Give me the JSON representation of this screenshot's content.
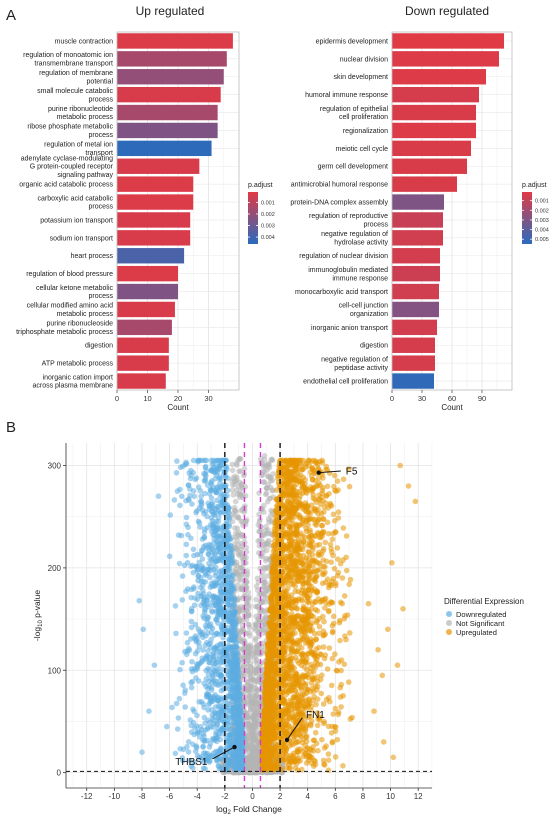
{
  "panels": {
    "a": {
      "letter": "A"
    },
    "b": {
      "letter": "B"
    }
  },
  "chart_data": [
    {
      "type": "bar",
      "orientation": "horizontal",
      "title": "Up regulated",
      "xlabel": "Count",
      "xlim": [
        0,
        40
      ],
      "xticks": [
        0,
        10,
        20,
        30
      ],
      "categories": [
        "muscle contraction",
        "regulation of monoatomic ion transmembrane transport",
        "regulation of membrane potential",
        "small molecule catabolic process",
        "purine ribonucleotide metabolic process",
        "ribose phosphate metabolic process",
        "regulation of metal ion transport",
        "adenylate cyclase-modulating G protein-coupled receptor signaling pathway",
        "organic acid catabolic process",
        "carboxylic acid catabolic process",
        "potassium ion transport",
        "sodium ion transport",
        "heart process",
        "regulation of blood pressure",
        "cellular ketone metabolic process",
        "cellular modified amino acid metabolic process",
        "purine ribonucleoside triphosphate metabolic process",
        "digestion",
        "ATP metabolic process",
        "inorganic cation import across plasma membrane"
      ],
      "label_lines": [
        [
          "muscle contraction"
        ],
        [
          "regulation of monoatomic ion",
          "transmembrane transport"
        ],
        [
          "regulation of membrane",
          "potential"
        ],
        [
          "small molecule catabolic",
          "process"
        ],
        [
          "purine ribonucleotide",
          "metabolic process"
        ],
        [
          "ribose phosphate metabolic",
          "process"
        ],
        [
          "regulation of metal ion",
          "transport"
        ],
        [
          "adenylate cyclase-modulating",
          "G protein-coupled receptor",
          "signaling pathway"
        ],
        [
          "organic acid catabolic process"
        ],
        [
          "carboxylic acid catabolic",
          "process"
        ],
        [
          "potassium ion transport"
        ],
        [
          "sodium ion transport"
        ],
        [
          "heart process"
        ],
        [
          "regulation of blood pressure"
        ],
        [
          "cellular ketone metabolic",
          "process"
        ],
        [
          "cellular modified amino acid",
          "metabolic process"
        ],
        [
          "purine ribonucleoside",
          "triphosphate metabolic process"
        ],
        [
          "digestion"
        ],
        [
          "ATP metabolic process"
        ],
        [
          "inorganic cation import",
          "across plasma membrane"
        ]
      ],
      "values": [
        38,
        36,
        35,
        34,
        33,
        33,
        31,
        27,
        25,
        25,
        24,
        24,
        22,
        20,
        20,
        19,
        18,
        17,
        17,
        16
      ],
      "p_adjust": [
        0.0002,
        0.0015,
        0.002,
        0.0003,
        0.0015,
        0.0025,
        0.0045,
        0.0003,
        0.0002,
        0.0002,
        0.0003,
        0.0003,
        0.0038,
        0.0002,
        0.0025,
        0.0003,
        0.0015,
        0.0003,
        0.0003,
        0.0003
      ],
      "legend": {
        "title": "p.adjust",
        "ticks": [
          0.001,
          0.002,
          0.003,
          0.004
        ],
        "tick_labels": [
          "0.001",
          "0.002",
          "0.003",
          "0.004"
        ],
        "range": [
          0.0001,
          0.0046
        ],
        "low_color": "#e03a45",
        "high_color": "#2a6bbd"
      },
      "grid": true
    },
    {
      "type": "bar",
      "orientation": "horizontal",
      "title": "Down regulated",
      "xlabel": "Count",
      "xlim": [
        0,
        120
      ],
      "xticks": [
        0,
        30,
        60,
        90
      ],
      "categories": [
        "epidermis development",
        "nuclear division",
        "skin development",
        "humoral immune response",
        "regulation of epithelial cell proliferation",
        "regionalization",
        "meiotic cell cycle",
        "germ cell development",
        "antimicrobial humoral response",
        "protein-DNA complex assembly",
        "regulation of reproductive process",
        "negative regulation of hydrolase activity",
        "regulation of nuclear division",
        "immunoglobulin mediated immune response",
        "monocarboxylic acid transport",
        "cell-cell junction organization",
        "inorganic anion transport",
        "digestion",
        "negative regulation of peptidase activity",
        "endothelial cell proliferation"
      ],
      "label_lines": [
        [
          "epidermis development"
        ],
        [
          "nuclear division"
        ],
        [
          "skin development"
        ],
        [
          "humoral immune response"
        ],
        [
          "regulation of epithelial",
          "cell proliferation"
        ],
        [
          "regionalization"
        ],
        [
          "meiotic cell cycle"
        ],
        [
          "germ cell development"
        ],
        [
          "antimicrobial humoral response"
        ],
        [
          "protein-DNA complex assembly"
        ],
        [
          "regulation of reproductive",
          "process"
        ],
        [
          "negative regulation of",
          "hydrolase activity"
        ],
        [
          "regulation of nuclear division"
        ],
        [
          "immunoglobulin mediated",
          "immune response"
        ],
        [
          "monocarboxylic acid transport"
        ],
        [
          "cell-cell junction",
          "organization"
        ],
        [
          "inorganic anion transport"
        ],
        [
          "digestion"
        ],
        [
          "negative regulation of",
          "peptidase activity"
        ],
        [
          "endothelial cell proliferation"
        ]
      ],
      "values": [
        112,
        107,
        94,
        87,
        84,
        84,
        79,
        75,
        65,
        52,
        51,
        51,
        48,
        48,
        47,
        47,
        45,
        43,
        43,
        42
      ],
      "p_adjust": [
        0.0001,
        0.0002,
        0.0002,
        0.0004,
        0.0003,
        0.0002,
        0.0003,
        0.0003,
        0.0003,
        0.003,
        0.0008,
        0.0006,
        0.0005,
        0.0007,
        0.0006,
        0.0028,
        0.0005,
        0.0004,
        0.0004,
        0.0053
      ],
      "legend": {
        "title": "p.adjust",
        "ticks": [
          0.001,
          0.002,
          0.003,
          0.004,
          0.005
        ],
        "tick_labels": [
          "0.001",
          "0.002",
          "0.003",
          "0.004",
          "0.005"
        ],
        "range": [
          0.0001,
          0.0055
        ],
        "low_color": "#e03a45",
        "high_color": "#2a6bbd"
      },
      "grid": true
    },
    {
      "type": "scatter",
      "subtype": "volcano",
      "xlabel_prefix": "log",
      "xlabel_sub": "2",
      "xlabel_suffix": " Fold Change",
      "ylabel_prefix": "-log",
      "ylabel_sub": "10",
      "ylabel_suffix": " p-value",
      "xlim": [
        -13.5,
        13
      ],
      "ylim": [
        -15,
        322
      ],
      "xticks": [
        -12,
        -10,
        -8,
        -6,
        -4,
        -2,
        0,
        2,
        4,
        6,
        8,
        10,
        12
      ],
      "xtick_labels": [
        "-12",
        "-10",
        "-8",
        "-6",
        "-4",
        "-2",
        "0",
        "2",
        "4",
        "6",
        "8",
        "10",
        "12"
      ],
      "yticks": [
        0,
        100,
        200,
        300
      ],
      "ytick_labels": [
        "0",
        "100",
        "200",
        "300"
      ],
      "thresholds": {
        "fold_change_black": [
          -2,
          2
        ],
        "fold_change_magenta": [
          -0.58,
          0.58
        ],
        "p_value_line": 1.3
      },
      "series": [
        {
          "name": "Downregulated",
          "color": "#5dade2"
        },
        {
          "name": "Not Significant",
          "color": "#b5b5b5"
        },
        {
          "name": "Upregulated",
          "color": "#e69500"
        }
      ],
      "legend": {
        "title": "Differential Expression",
        "position": "right"
      },
      "annotations": [
        {
          "gene": "F5",
          "x": 4.8,
          "y": 293
        },
        {
          "gene": "FN1",
          "x": 2.5,
          "y": 32
        },
        {
          "gene": "THBS1",
          "x": -1.3,
          "y": 25
        }
      ],
      "grid": true
    }
  ]
}
